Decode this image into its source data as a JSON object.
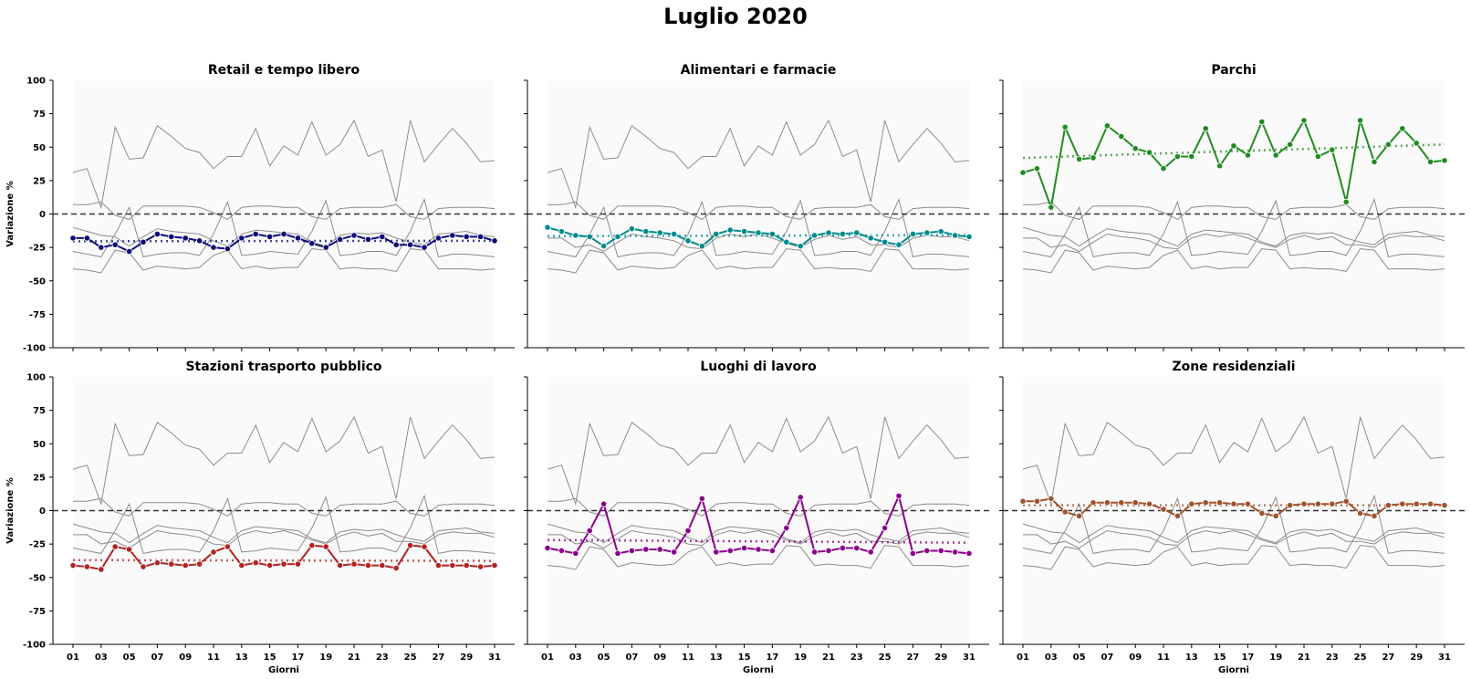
{
  "figure": {
    "title": "Luglio 2020"
  },
  "chart_data": {
    "type": "line",
    "title": "Luglio 2020",
    "xlabel": "Giorni",
    "ylabel": "Variazione %",
    "ylim": [
      -100,
      100
    ],
    "xlim": [
      1,
      31
    ],
    "yticks": [
      100,
      75,
      50,
      25,
      0,
      -25,
      -50,
      -75,
      -100
    ],
    "xtick_labels": [
      "01",
      "03",
      "05",
      "07",
      "09",
      "11",
      "13",
      "15",
      "17",
      "19",
      "21",
      "23",
      "25",
      "27",
      "29",
      "31"
    ],
    "days": [
      1,
      2,
      3,
      4,
      5,
      6,
      7,
      8,
      9,
      10,
      11,
      12,
      13,
      14,
      15,
      16,
      17,
      18,
      19,
      20,
      21,
      22,
      23,
      24,
      25,
      26,
      27,
      28,
      29,
      30,
      31
    ],
    "zero_line": 0,
    "background_color": "#e5e5e5",
    "panels": [
      {
        "title": "Retail e tempo libero",
        "color": "#0a0a78",
        "values": [
          -18,
          -18,
          -25,
          -23,
          -28,
          -21,
          -15,
          -17,
          -18,
          -20,
          -25,
          -26,
          -18,
          -15,
          -17,
          -15,
          -18,
          -22,
          -25,
          -19,
          -16,
          -19,
          -17,
          -23,
          -23,
          -25,
          -18,
          -16,
          -17,
          -17,
          -20
        ],
        "trend": [
          -20.4,
          -20.0
        ]
      },
      {
        "title": "Alimentari e farmacie",
        "color": "#008b8b",
        "values": [
          -10,
          -13,
          -16,
          -17,
          -24,
          -17,
          -11,
          -13,
          -14,
          -15,
          -20,
          -24,
          -15,
          -12,
          -13,
          -14,
          -15,
          -21,
          -24,
          -16,
          -14,
          -15,
          -14,
          -18,
          -21,
          -23,
          -15,
          -14,
          -13,
          -16,
          -17
        ],
        "trend": [
          -16.5,
          -15.8
        ]
      },
      {
        "title": "Parchi",
        "color": "#228b22",
        "values": [
          31,
          34,
          5,
          65,
          41,
          42,
          66,
          58,
          49,
          46,
          34,
          43,
          43,
          64,
          36,
          51,
          44,
          69,
          44,
          52,
          70,
          43,
          48,
          9,
          70,
          39,
          52,
          64,
          53,
          39,
          40
        ],
        "trend": [
          42,
          52
        ]
      },
      {
        "title": "Stazioni trasporto pubblico",
        "color": "#b22222",
        "values": [
          -41,
          -42,
          -44,
          -27,
          -29,
          -42,
          -39,
          -40,
          -41,
          -40,
          -31,
          -27,
          -41,
          -39,
          -41,
          -40,
          -40,
          -26,
          -27,
          -41,
          -40,
          -41,
          -41,
          -43,
          -26,
          -27,
          -41,
          -41,
          -41,
          -42,
          -41
        ],
        "trend": [
          -37,
          -37.6
        ]
      },
      {
        "title": "Luoghi di lavoro",
        "color": "#8b008b",
        "values": [
          -28,
          -30,
          -32,
          -15,
          5,
          -32,
          -30,
          -29,
          -29,
          -31,
          -15,
          9,
          -31,
          -30,
          -28,
          -29,
          -30,
          -13,
          10,
          -31,
          -30,
          -28,
          -28,
          -31,
          -13,
          11,
          -32,
          -30,
          -30,
          -31,
          -32
        ],
        "trend": [
          -22,
          -24
        ]
      },
      {
        "title": "Zone residenziali",
        "color": "#a0522d",
        "values": [
          7,
          7,
          9,
          -1,
          -4,
          6,
          6,
          6,
          6,
          5,
          1,
          -4,
          5,
          6,
          6,
          5,
          5,
          -2,
          -4,
          4,
          5,
          5,
          5,
          7,
          -2,
          -4,
          4,
          5,
          5,
          5,
          4
        ],
        "trend": [
          4,
          4
        ]
      }
    ]
  }
}
